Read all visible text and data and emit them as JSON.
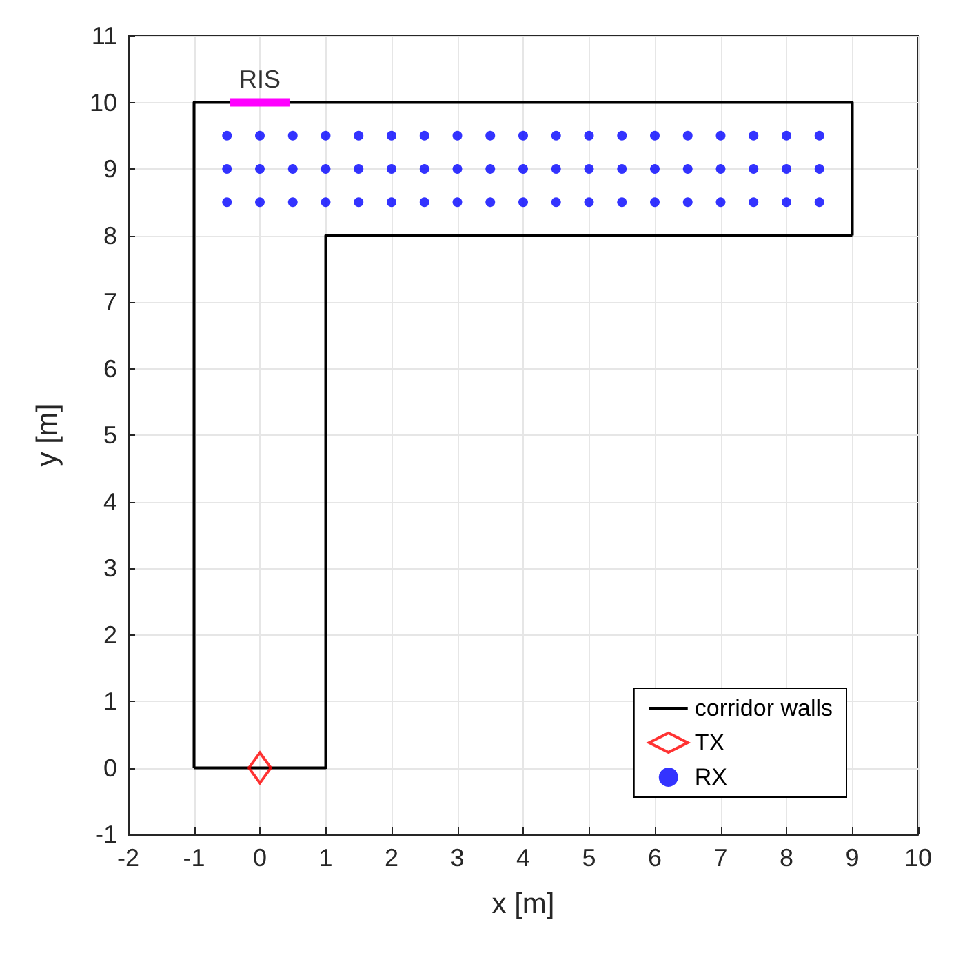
{
  "chart_data": {
    "type": "line",
    "xlabel": "x [m]",
    "ylabel": "y [m]",
    "xlim": [
      -2,
      10
    ],
    "ylim": [
      -1,
      11
    ],
    "xticks": [
      -2,
      -1,
      0,
      1,
      2,
      3,
      4,
      5,
      6,
      7,
      8,
      9,
      10
    ],
    "yticks": [
      -1,
      0,
      1,
      2,
      3,
      4,
      5,
      6,
      7,
      8,
      9,
      10,
      11
    ],
    "grid": true,
    "legend": "bottom right",
    "annotations": [
      {
        "text": "RIS",
        "x": 0,
        "y": 10
      }
    ],
    "series": [
      {
        "name": "corridor walls",
        "type": "line",
        "color": "#000000",
        "marker": "none",
        "line_style": "solid",
        "x": [
          -1,
          -1,
          9,
          9
        ],
        "values": [
          0,
          10,
          10,
          8
        ]
      },
      {
        "type": "line",
        "color": "#000000",
        "marker": "none",
        "line_style": "solid",
        "x": [
          9,
          1,
          1,
          -1
        ],
        "values": [
          8,
          8,
          0,
          0
        ]
      },
      {
        "name": "TX",
        "type": "scatter",
        "color": "#ff0000",
        "marker": "diamond",
        "x": [
          0
        ],
        "values": [
          0
        ]
      },
      {
        "name": "RX",
        "type": "scatter",
        "color": "#0000ff",
        "marker": "circle",
        "x": [
          -0.5,
          0,
          0.5,
          1,
          1.5,
          2,
          2.5,
          3,
          3.5,
          4,
          4.5,
          5,
          5.5,
          6,
          6.5,
          7,
          7.5,
          8,
          8.5,
          -0.5,
          0,
          0.5,
          1,
          1.5,
          2,
          2.5,
          3,
          3.5,
          4,
          4.5,
          5,
          5.5,
          6,
          6.5,
          7,
          7.5,
          8,
          8.5,
          -0.5,
          0,
          0.5,
          1,
          1.5,
          2,
          2.5,
          3,
          3.5,
          4,
          4.5,
          5,
          5.5,
          6,
          6.5,
          7,
          7.5,
          8,
          8.5
        ],
        "values": [
          9.5,
          9.5,
          9.5,
          9.5,
          9.5,
          9.5,
          9.5,
          9.5,
          9.5,
          9.5,
          9.5,
          9.5,
          9.5,
          9.5,
          9.5,
          9.5,
          9.5,
          9.5,
          9.5,
          9,
          9,
          9,
          9,
          9,
          9,
          9,
          9,
          9,
          9,
          9,
          9,
          9,
          9,
          9,
          9,
          9,
          9,
          9,
          8.5,
          8.5,
          8.5,
          8.5,
          8.5,
          8.5,
          8.5,
          8.5,
          8.5,
          8.5,
          8.5,
          8.5,
          8.5,
          8.5,
          8.5,
          8.5,
          8.5,
          8.5,
          8.5
        ]
      },
      {
        "type": "line",
        "color": "#ff00ff",
        "marker": "none",
        "line_style": "solid",
        "x": [
          -0.45,
          0.45
        ],
        "values": [
          10,
          10
        ]
      }
    ]
  }
}
